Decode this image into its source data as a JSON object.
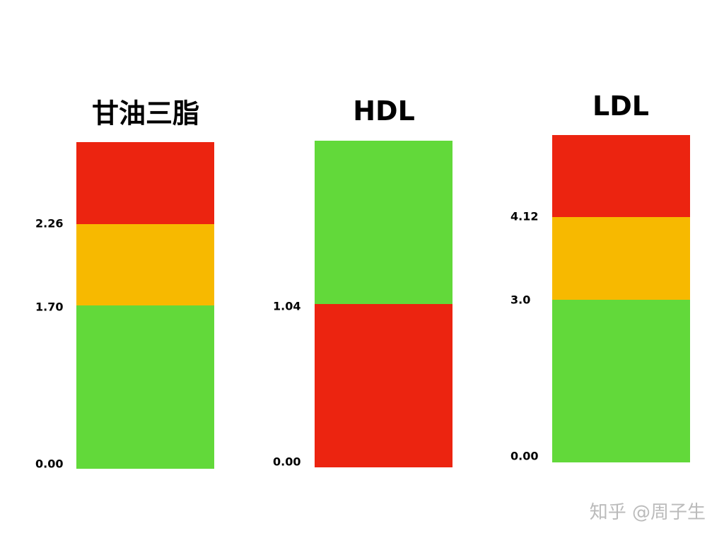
{
  "panels": [
    {
      "title": "甘油三脂",
      "zones": [
        {
          "color": "#ec2410"
        },
        {
          "color": "#f7b900"
        },
        {
          "color": "#62d93a"
        }
      ],
      "labels": [
        "2.26",
        "1.70",
        "0.00"
      ]
    },
    {
      "title": "HDL",
      "zones": [
        {
          "color": "#62d93a"
        },
        {
          "color": "#ec2410"
        }
      ],
      "labels": [
        "1.04",
        "0.00"
      ]
    },
    {
      "title": "LDL",
      "zones": [
        {
          "color": "#ec2410"
        },
        {
          "color": "#f7b900"
        },
        {
          "color": "#62d93a"
        }
      ],
      "labels": [
        "4.12",
        "3.0",
        "0.00"
      ]
    }
  ],
  "watermark": "知乎 @周子生"
}
